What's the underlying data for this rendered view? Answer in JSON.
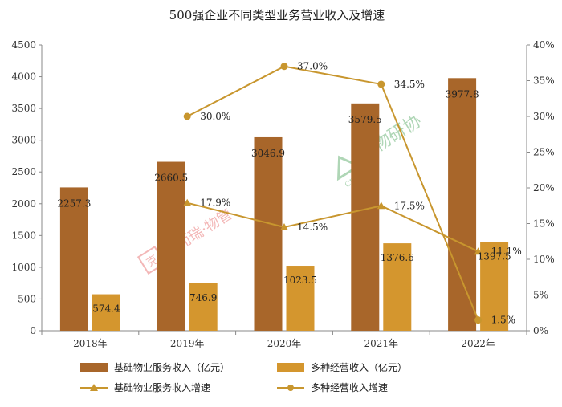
{
  "chart_data": {
    "type": "bar",
    "title": "500强企业不同类型业务营业收入及增速",
    "categories": [
      "2018年",
      "2019年",
      "2020年",
      "2021年",
      "2022年"
    ],
    "left_axis": {
      "ylim": [
        0,
        4500
      ],
      "ticks": [
        "0",
        "500",
        "1000",
        "1500",
        "2000",
        "2500",
        "3000",
        "3500",
        "4000",
        "4500"
      ]
    },
    "right_axis": {
      "ylim": [
        0,
        40
      ],
      "ticks": [
        "0%",
        "5%",
        "10%",
        "15%",
        "20%",
        "25%",
        "30%",
        "35%",
        "40%"
      ]
    },
    "series": [
      {
        "name": "基础物业服务收入（亿元）",
        "type": "bar",
        "axis": "left",
        "color": "#A8662A",
        "values": [
          2257.3,
          2660.5,
          3046.9,
          3579.5,
          3977.8
        ],
        "labels": [
          "2257.3",
          "2660.5",
          "3046.9",
          "3579.5",
          "3977.8"
        ]
      },
      {
        "name": "多种经营收入（亿元）",
        "type": "bar",
        "axis": "left",
        "color": "#D4962E",
        "values": [
          574.4,
          746.9,
          1023.5,
          1376.6,
          1397.5
        ],
        "labels": [
          "574.4",
          "746.9",
          "1023.5",
          "1376.6",
          "1397.5"
        ]
      },
      {
        "name": "基础物业服务收入增速",
        "type": "line",
        "axis": "right",
        "marker": "triangle",
        "color": "#C8962E",
        "values": [
          null,
          17.9,
          14.5,
          17.5,
          11.1
        ],
        "labels": [
          "",
          "17.9%",
          "14.5%",
          "17.5%",
          "11.1%"
        ]
      },
      {
        "name": "多种经营收入增速",
        "type": "line",
        "axis": "right",
        "marker": "circle",
        "color": "#C8962E",
        "values": [
          null,
          30.0,
          37.0,
          34.5,
          1.5
        ],
        "labels": [
          "",
          "30.0%",
          "37.0%",
          "34.5%",
          "1.5%"
        ]
      }
    ],
    "legend_position": "bottom",
    "grid": false
  },
  "watermarks": [
    "克而瑞·物管",
    "中物研协",
    "CPMRI"
  ]
}
